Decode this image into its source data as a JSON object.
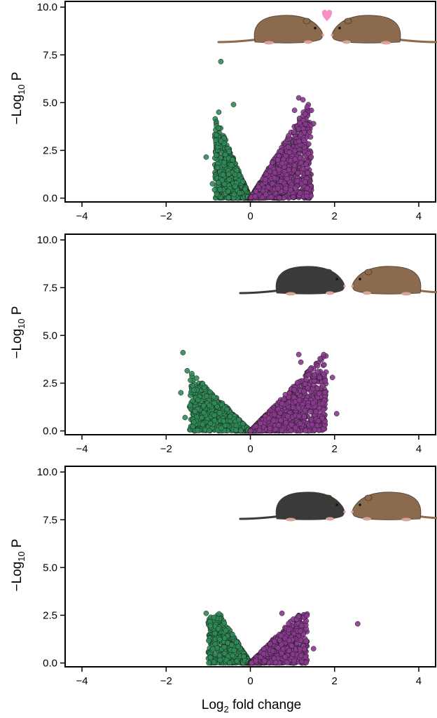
{
  "figure": {
    "ylabel_main": "−Log",
    "ylabel_sub": "10",
    "ylabel_tail": " P",
    "xlabel_main": "Log",
    "xlabel_sub": "2",
    "xlabel_tail": " fold change"
  },
  "colors": {
    "down": "#2e8b57",
    "up": "#8b3a8f",
    "point_edge": "#1a1a1a",
    "vole_brown": "#8b6a4e",
    "vole_dark": "#3a3a3a",
    "heart": "#f78fc6"
  },
  "chart_data": [
    {
      "type": "scatter",
      "title": "",
      "xlim": [
        -4.4,
        4.4
      ],
      "ylim": [
        -0.2,
        10.3
      ],
      "xticks": [
        -4,
        -2,
        0,
        2,
        4
      ],
      "yticks": [
        0.0,
        2.5,
        5.0,
        7.5,
        10.0
      ],
      "ytick_labels": [
        "0.0",
        "2.5",
        "5.0",
        "7.5",
        "10.0"
      ],
      "grid": false,
      "illustration": "two brown voles facing each other with a pink heart",
      "cloud": {
        "down_n": 900,
        "up_n": 1300,
        "down_xmin": -0.85,
        "up_xmax": 1.45,
        "slope_down": 5.2,
        "slope_up": 3.6,
        "ymax": 5.0
      },
      "outliers": [
        {
          "x": -0.7,
          "y": 7.15
        },
        {
          "x": -1.05,
          "y": 2.15
        },
        {
          "x": -0.9,
          "y": 0.75
        },
        {
          "x": 1.15,
          "y": 5.25
        },
        {
          "x": 1.25,
          "y": 5.15
        },
        {
          "x": 1.5,
          "y": 3.9
        },
        {
          "x": 1.3,
          "y": 4.4
        },
        {
          "x": 1.05,
          "y": 4.6
        },
        {
          "x": -0.4,
          "y": 4.9
        },
        {
          "x": -0.75,
          "y": 4.5
        }
      ]
    },
    {
      "type": "scatter",
      "title": "",
      "xlim": [
        -4.4,
        4.4
      ],
      "ylim": [
        -0.2,
        10.3
      ],
      "xticks": [
        -4,
        -2,
        0,
        2,
        4
      ],
      "yticks": [
        0.0,
        2.5,
        5.0,
        7.5,
        10.0
      ],
      "ytick_labels": [
        "0.0",
        "2.5",
        "5.0",
        "7.5",
        "10.0"
      ],
      "grid": false,
      "illustration": "dark vole facing a brown vole",
      "cloud": {
        "down_n": 900,
        "up_n": 1300,
        "down_xmin": -1.45,
        "up_xmax": 1.8,
        "slope_down": 2.2,
        "slope_up": 2.3,
        "ymax": 4.0
      },
      "outliers": [
        {
          "x": -1.6,
          "y": 4.1
        },
        {
          "x": -1.5,
          "y": 3.15
        },
        {
          "x": -1.65,
          "y": 2.0
        },
        {
          "x": -1.55,
          "y": 0.7
        },
        {
          "x": 2.05,
          "y": 0.9
        },
        {
          "x": 1.95,
          "y": 2.8
        },
        {
          "x": 1.15,
          "y": 4.0
        },
        {
          "x": 1.6,
          "y": 3.1
        },
        {
          "x": 1.2,
          "y": 3.6
        }
      ]
    },
    {
      "type": "scatter",
      "title": "",
      "xlim": [
        -4.4,
        4.4
      ],
      "ylim": [
        -0.2,
        10.3
      ],
      "xticks": [
        -4,
        -2,
        0,
        2,
        4
      ],
      "yticks": [
        0.0,
        2.5,
        5.0,
        7.5,
        10.0
      ],
      "ytick_labels": [
        "0.0",
        "2.5",
        "5.0",
        "7.5",
        "10.0"
      ],
      "grid": false,
      "illustration": "dark vole facing a brown vole",
      "cloud": {
        "down_n": 800,
        "up_n": 1000,
        "down_xmin": -1.0,
        "up_xmax": 1.35,
        "slope_down": 3.6,
        "slope_up": 2.3,
        "ymax": 2.6
      },
      "outliers": [
        {
          "x": -1.05,
          "y": 2.6
        },
        {
          "x": 2.55,
          "y": 2.05
        },
        {
          "x": 1.5,
          "y": 0.75
        },
        {
          "x": 0.75,
          "y": 2.6
        },
        {
          "x": -0.95,
          "y": 1.95
        }
      ]
    }
  ]
}
